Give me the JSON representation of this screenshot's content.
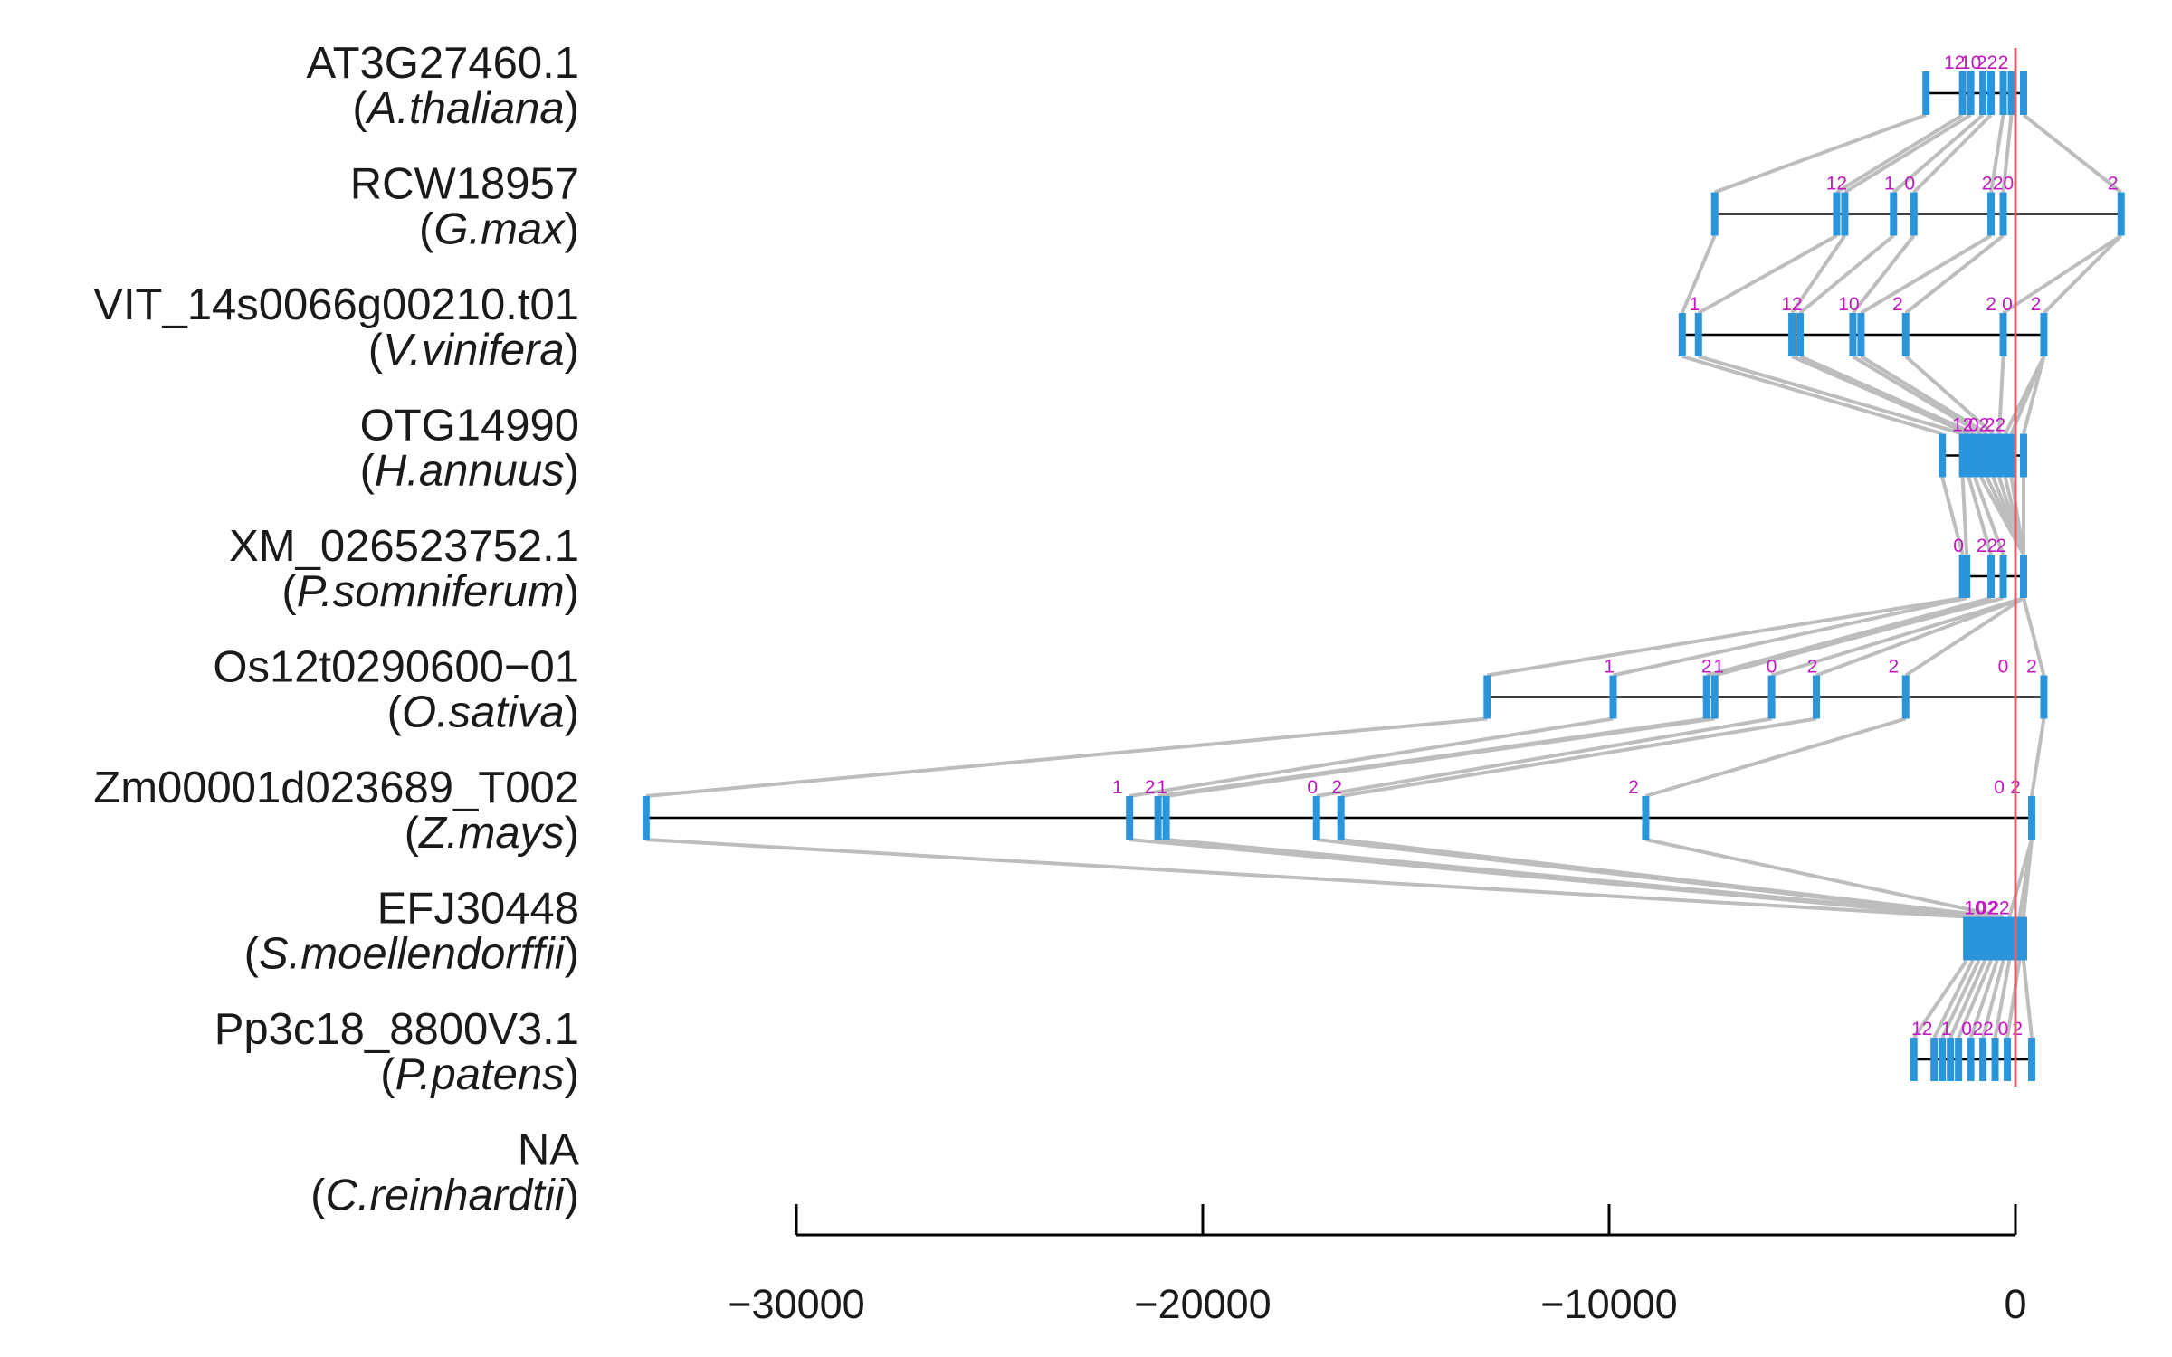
{
  "diagram": {
    "x_axis": {
      "domain": [
        -30000,
        0
      ],
      "ticks": [
        {
          "value": -30000,
          "label": "−30000"
        },
        {
          "value": -20000,
          "label": "−20000"
        },
        {
          "value": -10000,
          "label": "−10000"
        },
        {
          "value": 0,
          "label": "0"
        }
      ]
    },
    "colors": {
      "exon": "#2b95dc",
      "connector": "#bdbdbd",
      "intron_line": "#000000",
      "phase": "#c218c2",
      "reference_line": "#e06070"
    },
    "genes": [
      {
        "id": "AT3G27460.1",
        "species": "A.thaliana",
        "exons": [
          -2200,
          -1300,
          -1100,
          -800,
          -600,
          -300,
          -100,
          200
        ],
        "span": [
          -2200,
          200
        ],
        "phases": [
          {
            "x": -1500,
            "t": "12"
          },
          {
            "x": -1100,
            "t": "10"
          },
          {
            "x": -700,
            "t": "22"
          },
          {
            "x": -300,
            "t": "2"
          }
        ]
      },
      {
        "id": "RCW18957",
        "species": "G.max",
        "exons": [
          -7400,
          -4400,
          -4200,
          -3000,
          -2500,
          -600,
          -300,
          2600
        ],
        "span": [
          -7400,
          2600
        ],
        "phases": [
          {
            "x": -4400,
            "t": "12"
          },
          {
            "x": -3100,
            "t": "1"
          },
          {
            "x": -2600,
            "t": "0"
          },
          {
            "x": -700,
            "t": "2"
          },
          {
            "x": -300,
            "t": "20"
          },
          {
            "x": 2400,
            "t": "2"
          }
        ]
      },
      {
        "id": "VIT_14s0066g00210.t01",
        "species": "V.vinifera",
        "exons": [
          -8200,
          -7800,
          -5500,
          -5300,
          -4000,
          -3800,
          -2700,
          -300,
          700
        ],
        "span": [
          -8200,
          700
        ],
        "phases": [
          {
            "x": -7900,
            "t": "1"
          },
          {
            "x": -5500,
            "t": "12"
          },
          {
            "x": -4100,
            "t": "10"
          },
          {
            "x": -2900,
            "t": "2"
          },
          {
            "x": -600,
            "t": "2"
          },
          {
            "x": -200,
            "t": "0"
          },
          {
            "x": 500,
            "t": "2"
          }
        ]
      },
      {
        "id": "OTG14990",
        "species": "H.annuus",
        "exons": [
          -1800,
          -1300,
          -1150,
          -1000,
          -850,
          -700,
          -550,
          -400,
          -250,
          -100,
          200
        ],
        "span": [
          -1800,
          200
        ],
        "phases": [
          {
            "x": -1300,
            "t": "12"
          },
          {
            "x": -900,
            "t": "02"
          },
          {
            "x": -500,
            "t": "22"
          }
        ]
      },
      {
        "id": "XM_026523752.1",
        "species": "P.somniferum",
        "exons": [
          -1300,
          -1200,
          -600,
          -300,
          200
        ],
        "span": [
          -1300,
          200
        ],
        "phases": [
          {
            "x": -1400,
            "t": "0"
          },
          {
            "x": -700,
            "t": "22"
          },
          {
            "x": -350,
            "t": "2"
          }
        ]
      },
      {
        "id": "Os12t0290600−01",
        "species": "O.sativa",
        "exons": [
          -13000,
          -9900,
          -7600,
          -7400,
          -6000,
          -4900,
          -2700,
          700
        ],
        "span": [
          -13000,
          700
        ],
        "phases": [
          {
            "x": -10000,
            "t": "1"
          },
          {
            "x": -7600,
            "t": "2"
          },
          {
            "x": -7300,
            "t": "1"
          },
          {
            "x": -6000,
            "t": "0"
          },
          {
            "x": -5000,
            "t": "2"
          },
          {
            "x": -3000,
            "t": "2"
          },
          {
            "x": -300,
            "t": "0"
          },
          {
            "x": 400,
            "t": "2"
          }
        ]
      },
      {
        "id": "Zm00001d023689_T002",
        "species": "Z.mays",
        "exons": [
          -33700,
          -21800,
          -21100,
          -20900,
          -17200,
          -16600,
          -9100,
          400
        ],
        "span": [
          -33700,
          400
        ],
        "phases": [
          {
            "x": -22100,
            "t": "1"
          },
          {
            "x": -21300,
            "t": "2"
          },
          {
            "x": -21000,
            "t": "1"
          },
          {
            "x": -17300,
            "t": "0"
          },
          {
            "x": -16700,
            "t": "2"
          },
          {
            "x": -9400,
            "t": "2"
          },
          {
            "x": -400,
            "t": "0"
          },
          {
            "x": 0,
            "t": "2"
          }
        ]
      },
      {
        "id": "EFJ30448",
        "species": "S.moellendorffii",
        "exons": [
          -1200,
          -1050,
          -900,
          -750,
          -600,
          -450,
          -300,
          -150,
          100,
          200
        ],
        "span": [
          -1200,
          200
        ],
        "phases": [
          {
            "x": -1000,
            "t": "10"
          },
          {
            "x": -700,
            "t": "02"
          },
          {
            "x": -400,
            "t": "22"
          }
        ],
        "block": [
          -1200,
          200
        ]
      },
      {
        "id": "Pp3c18_8800V3.1",
        "species": "P.patens",
        "exons": [
          -2500,
          -2000,
          -1800,
          -1600,
          -1400,
          -1100,
          -800,
          -500,
          -200,
          400
        ],
        "span": [
          -2500,
          400
        ],
        "phases": [
          {
            "x": -2300,
            "t": "12"
          },
          {
            "x": -1700,
            "t": "1"
          },
          {
            "x": -1200,
            "t": "0"
          },
          {
            "x": -800,
            "t": "22"
          },
          {
            "x": -300,
            "t": "0"
          },
          {
            "x": 50,
            "t": "2"
          }
        ]
      },
      {
        "id": "NA",
        "species": "C.reinhardtii",
        "exons": [],
        "span": null,
        "phases": []
      }
    ]
  }
}
